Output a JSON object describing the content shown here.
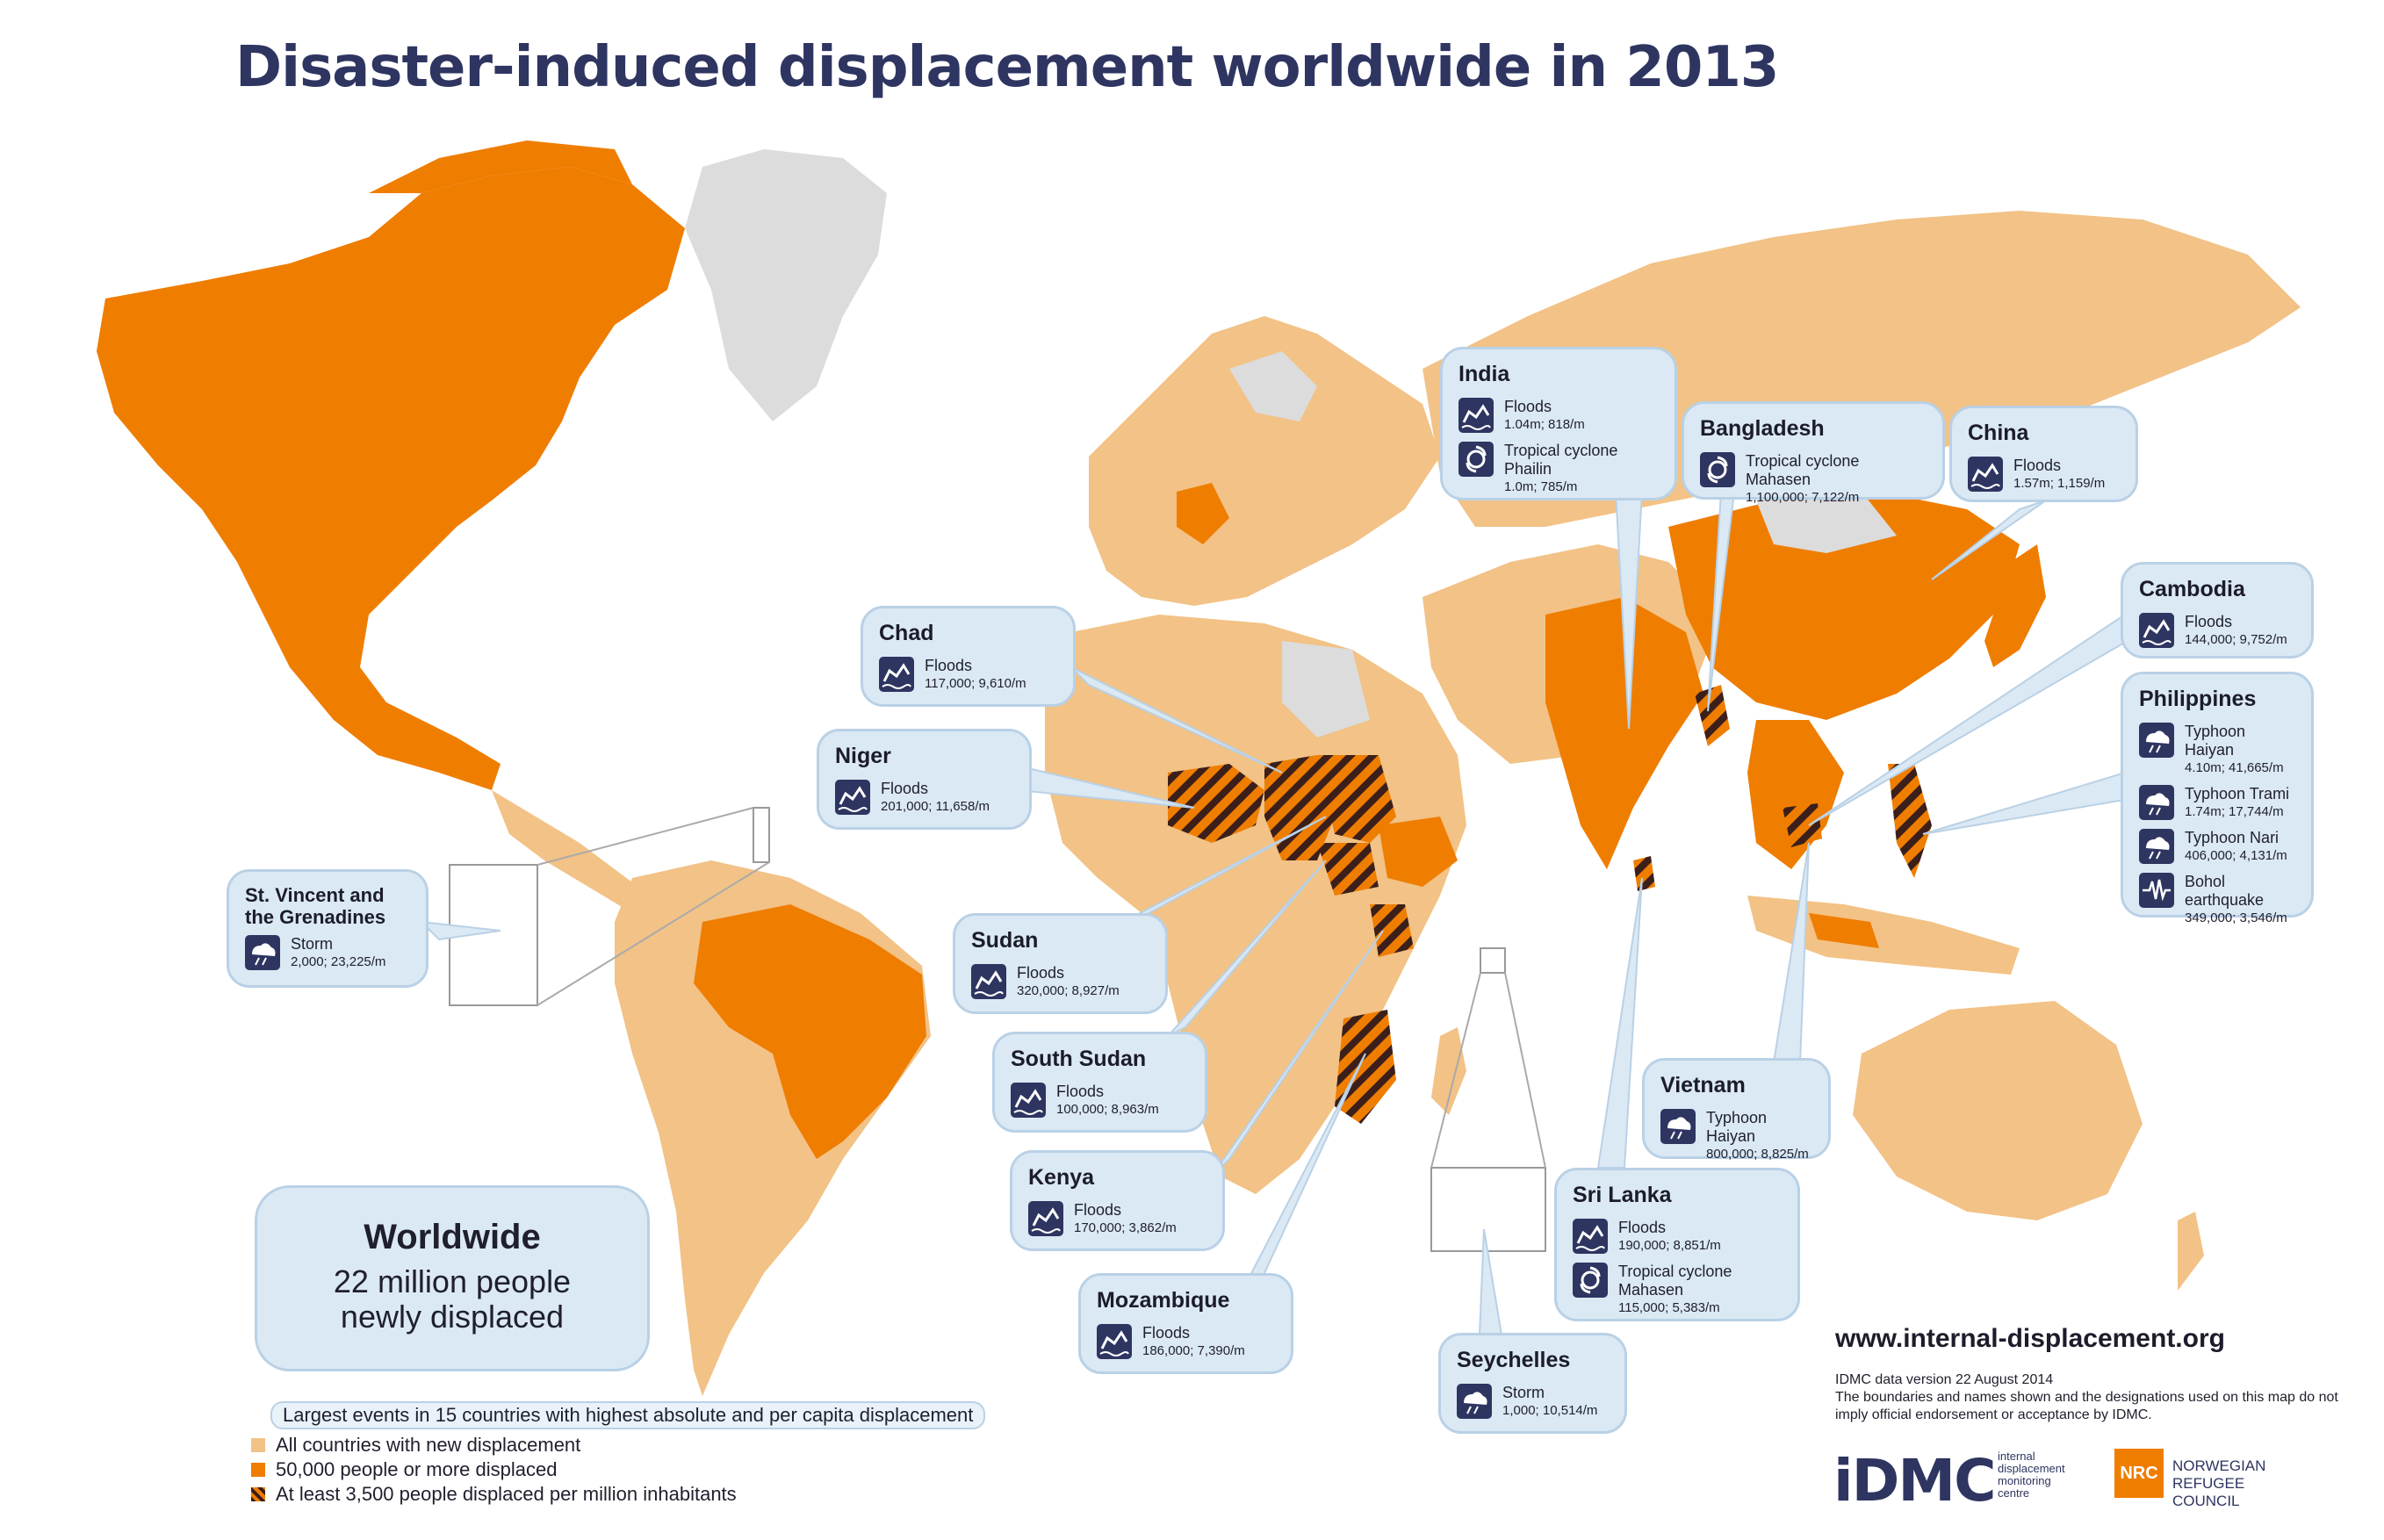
{
  "title": "Disaster-induced displacement worldwide in 2013",
  "colors": {
    "all_countries": "#f2c286",
    "fifty_thousand": "#ef7d00",
    "no_data": "#dcdcdc",
    "hatch_dark": "#3c1f1a",
    "box_fill": "#dbe9f4",
    "box_border": "#b9d1e6",
    "icon_bg": "#2e3561"
  },
  "countries": {
    "india": {
      "name": "India",
      "events": [
        {
          "type": "Floods",
          "icon": "flood-icon",
          "value": "1.04m; 818/m"
        },
        {
          "type": "Tropical cyclone Phailin",
          "icon": "cyclone-icon",
          "value": "1.0m; 785/m"
        }
      ]
    },
    "bangladesh": {
      "name": "Bangladesh",
      "events": [
        {
          "type": "Tropical cyclone Mahasen",
          "icon": "cyclone-icon",
          "value": "1,100,000; 7,122/m"
        }
      ]
    },
    "china": {
      "name": "China",
      "events": [
        {
          "type": "Floods",
          "icon": "flood-icon",
          "value": "1.57m; 1,159/m"
        }
      ]
    },
    "cambodia": {
      "name": "Cambodia",
      "events": [
        {
          "type": "Floods",
          "icon": "flood-icon",
          "value": "144,000; 9,752/m"
        }
      ]
    },
    "philippines": {
      "name": "Philippines",
      "events": [
        {
          "type": "Typhoon Haiyan",
          "icon": "storm-icon",
          "value": "4.10m; 41,665/m"
        },
        {
          "type": "Typhoon Trami",
          "icon": "storm-icon",
          "value": "1.74m; 17,744/m"
        },
        {
          "type": "Typhoon Nari",
          "icon": "storm-icon",
          "value": "406,000; 4,131/m"
        },
        {
          "type": "Bohol earthquake",
          "icon": "earthquake-icon",
          "value": "349,000; 3,546/m"
        }
      ]
    },
    "chad": {
      "name": "Chad",
      "events": [
        {
          "type": "Floods",
          "icon": "flood-icon",
          "value": "117,000; 9,610/m"
        }
      ]
    },
    "niger": {
      "name": "Niger",
      "events": [
        {
          "type": "Floods",
          "icon": "flood-icon",
          "value": "201,000; 11,658/m"
        }
      ]
    },
    "sudan": {
      "name": "Sudan",
      "events": [
        {
          "type": "Floods",
          "icon": "flood-icon",
          "value": "320,000; 8,927/m"
        }
      ]
    },
    "south_sudan": {
      "name": "South Sudan",
      "events": [
        {
          "type": "Floods",
          "icon": "flood-icon",
          "value": "100,000; 8,963/m"
        }
      ]
    },
    "kenya": {
      "name": "Kenya",
      "events": [
        {
          "type": "Floods",
          "icon": "flood-icon",
          "value": "170,000; 3,862/m"
        }
      ]
    },
    "mozambique": {
      "name": "Mozambique",
      "events": [
        {
          "type": "Floods",
          "icon": "flood-icon",
          "value": "186,000; 7,390/m"
        }
      ]
    },
    "st_vincent": {
      "name": "St. Vincent and the Grenadines",
      "events": [
        {
          "type": "Storm",
          "icon": "storm-icon",
          "value": "2,000; 23,225/m"
        }
      ]
    },
    "vietnam": {
      "name": "Vietnam",
      "events": [
        {
          "type": "Typhoon Haiyan",
          "icon": "storm-icon",
          "value": "800,000; 8,825/m"
        }
      ]
    },
    "sri_lanka": {
      "name": "Sri Lanka",
      "events": [
        {
          "type": "Floods",
          "icon": "flood-icon",
          "value": "190,000; 8,851/m"
        },
        {
          "type": "Tropical cyclone Mahasen",
          "icon": "cyclone-icon",
          "value": "115,000; 5,383/m"
        }
      ]
    },
    "seychelles": {
      "name": "Seychelles",
      "events": [
        {
          "type": "Storm",
          "icon": "storm-icon",
          "value": "1,000; 10,514/m"
        }
      ]
    }
  },
  "worldwide": {
    "label": "Worldwide",
    "line1": "22 million people",
    "line2": "newly displaced"
  },
  "legend": {
    "header": "Largest events in 15 countries with highest absolute and per capita displacement",
    "all": "All countries with new displacement",
    "fifty": "50,000 people or more displaced",
    "percap": "At least 3,500 people displaced per million inhabitants"
  },
  "footer": {
    "url": "www.internal-displacement.org",
    "version": "IDMC data version 22 August 2014",
    "disclaimer": "The boundaries and names shown and the designations used on this map do not imply official endorsement or acceptance by IDMC.",
    "idmc_logo": "iDMC",
    "idmc_sub": "internal displacement monitoring centre",
    "nrc_logo": "NRC",
    "nrc_text": "NORWEGIAN REFUGEE COUNCIL"
  }
}
